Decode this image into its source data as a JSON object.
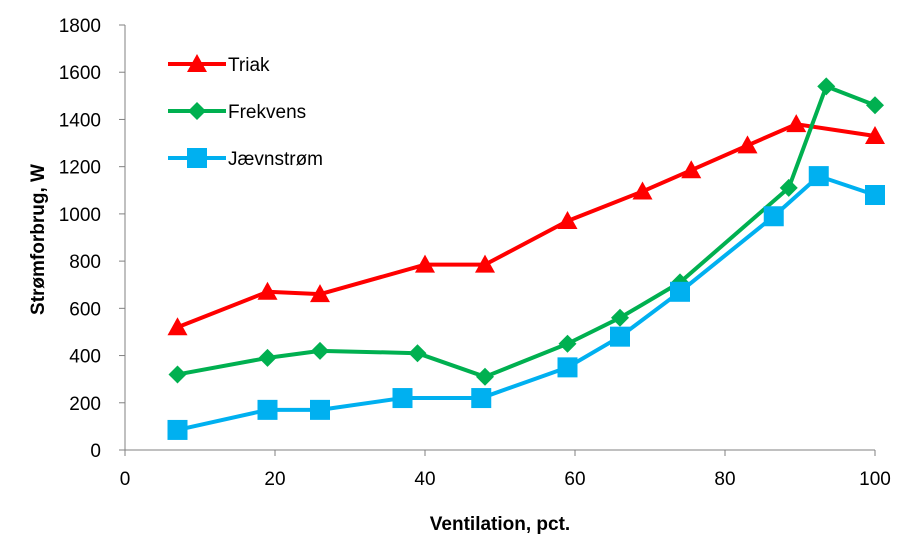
{
  "chart_data": {
    "type": "line",
    "title": "",
    "xlabel": "Ventilation, pct.",
    "ylabel": "Strømforbrug, W",
    "xlim": [
      0,
      100
    ],
    "ylim": [
      0,
      1800
    ],
    "x_ticks": [
      0,
      20,
      40,
      60,
      80,
      100
    ],
    "y_ticks": [
      0,
      200,
      400,
      600,
      800,
      1000,
      1200,
      1400,
      1600,
      1800
    ],
    "grid": false,
    "legend_position": "top-left",
    "series": [
      {
        "name": "Triak",
        "color": "#ff0000",
        "marker": "triangle",
        "points": [
          [
            7,
            520
          ],
          [
            19,
            670
          ],
          [
            26,
            660
          ],
          [
            40,
            785
          ],
          [
            48,
            785
          ],
          [
            59,
            970
          ],
          [
            69,
            1095
          ],
          [
            75.5,
            1185
          ],
          [
            83,
            1290
          ],
          [
            89.5,
            1380
          ],
          [
            100,
            1330
          ]
        ]
      },
      {
        "name": "Frekvens",
        "color": "#00b050",
        "marker": "diamond",
        "points": [
          [
            7,
            320
          ],
          [
            19,
            390
          ],
          [
            26,
            420
          ],
          [
            39,
            410
          ],
          [
            48,
            310
          ],
          [
            59,
            450
          ],
          [
            66,
            560
          ],
          [
            74,
            710
          ],
          [
            88.5,
            1110
          ],
          [
            93.5,
            1540
          ],
          [
            100,
            1460
          ]
        ]
      },
      {
        "name": "Jævnstrøm",
        "color": "#00b0f0",
        "marker": "square",
        "points": [
          [
            7,
            85
          ],
          [
            19,
            170
          ],
          [
            26,
            170
          ],
          [
            37,
            220
          ],
          [
            47.5,
            220
          ],
          [
            59,
            350
          ],
          [
            66,
            480
          ],
          [
            74,
            670
          ],
          [
            86.5,
            990
          ],
          [
            92.5,
            1160
          ],
          [
            100,
            1080
          ]
        ]
      }
    ]
  }
}
